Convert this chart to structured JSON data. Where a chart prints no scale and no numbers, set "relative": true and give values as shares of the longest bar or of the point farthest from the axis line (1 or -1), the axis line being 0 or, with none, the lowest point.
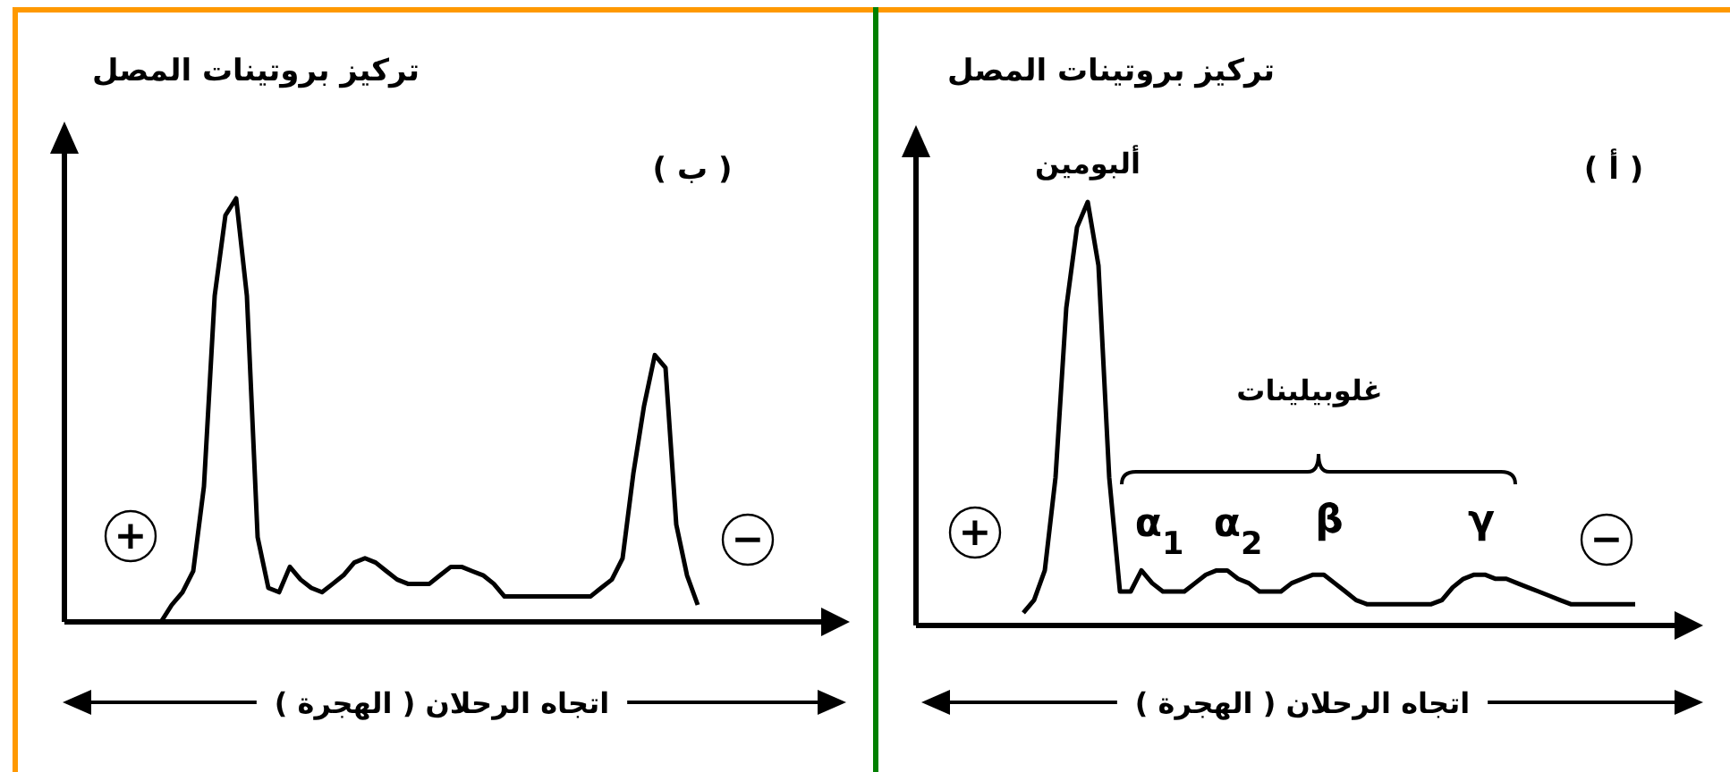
{
  "chart_data": [
    {
      "type": "line",
      "relative": true,
      "title": "( أ )",
      "ylabel": "تركيز بروتينات المصل",
      "xlabel": "اتجاه الرحلان ( الهجرة )",
      "marker": "none",
      "line_style": "solid",
      "categories": [
        null,
        null,
        null,
        null,
        null,
        null,
        null,
        null,
        null,
        null,
        null,
        null,
        null,
        null,
        null,
        null,
        null,
        null,
        null,
        null,
        null,
        null,
        null,
        null,
        null,
        null,
        null,
        null,
        null,
        null,
        null,
        null,
        null,
        null,
        null,
        null,
        null,
        null,
        null,
        null,
        null,
        null,
        null,
        null,
        null,
        null,
        null,
        null,
        null,
        null,
        null,
        null,
        null,
        null,
        null,
        null,
        null,
        null,
        null,
        null,
        null,
        null,
        null,
        null,
        null,
        null,
        null,
        null,
        null,
        null,
        null,
        null,
        null,
        null
      ],
      "series": [
        {
          "color": "#000000",
          "values": [
            null,
            null,
            null,
            null,
            null,
            null,
            null,
            null,
            null,
            null,
            0.03,
            0.06,
            0.13,
            0.35,
            0.75,
            0.94,
            1,
            0.85,
            0.35,
            0.08,
            0.08,
            0.13,
            0.1,
            0.08,
            0.08,
            0.08,
            0.1,
            0.12,
            0.13,
            0.13,
            0.11,
            0.1,
            0.08,
            0.08,
            0.08,
            0.1,
            0.11,
            0.12,
            0.12,
            0.1,
            0.08,
            0.06,
            0.05,
            0.05,
            0.05,
            0.05,
            0.05,
            0.05,
            0.05,
            0.06,
            0.09,
            0.11,
            0.12,
            0.12,
            0.11,
            0.11,
            0.1,
            0.09,
            0.08,
            0.07,
            0.06,
            0.05,
            0.05,
            0.05,
            0.05,
            0.05,
            0.05,
            0.05,
            null,
            null,
            null,
            null,
            null,
            null
          ]
        }
      ],
      "annotations": [
        "ألبومين",
        "غلوبيلينات",
        "α$_{1}$",
        "α$_{2}$",
        "β",
        "γ",
        "+",
        "−"
      ]
    },
    {
      "type": "line",
      "relative": true,
      "title": "( ب )",
      "ylabel": "تركيز بروتينات المصل",
      "xlabel": "اتجاه الرحلان ( الهجرة )",
      "marker": "none",
      "line_style": "solid",
      "categories": [
        null,
        null,
        null,
        null,
        null,
        null,
        null,
        null,
        null,
        null,
        null,
        null,
        null,
        null,
        null,
        null,
        null,
        null,
        null,
        null,
        null,
        null,
        null,
        null,
        null,
        null,
        null,
        null,
        null,
        null,
        null,
        null,
        null,
        null,
        null,
        null,
        null,
        null,
        null,
        null,
        null,
        null,
        null,
        null,
        null,
        null,
        null,
        null,
        null,
        null,
        null,
        null,
        null,
        null,
        null,
        null,
        null,
        null,
        null,
        null,
        null,
        null,
        null,
        null,
        null,
        null,
        null,
        null,
        null,
        null,
        null,
        null,
        null,
        null
      ],
      "series": [
        {
          "color": "#000000",
          "values": [
            null,
            null,
            null,
            null,
            null,
            null,
            null,
            null,
            null,
            0,
            0.04,
            0.07,
            0.12,
            0.32,
            0.77,
            0.96,
            1,
            0.77,
            0.2,
            0.08,
            0.07,
            0.13,
            0.1,
            0.08,
            0.07,
            0.09,
            0.11,
            0.14,
            0.15,
            0.14,
            0.12,
            0.1,
            0.09,
            0.09,
            0.09,
            0.11,
            0.13,
            0.13,
            0.12,
            0.11,
            0.09,
            0.06,
            0.06,
            0.06,
            0.06,
            0.06,
            0.06,
            0.06,
            0.06,
            0.06,
            0.08,
            0.1,
            0.15,
            0.35,
            0.51,
            0.63,
            0.6,
            0.23,
            0.11,
            0.04,
            null,
            null,
            null,
            null,
            null,
            null,
            null,
            null,
            null,
            null,
            null,
            null,
            null,
            null
          ]
        }
      ],
      "annotations": [
        "+",
        "−"
      ]
    }
  ]
}
